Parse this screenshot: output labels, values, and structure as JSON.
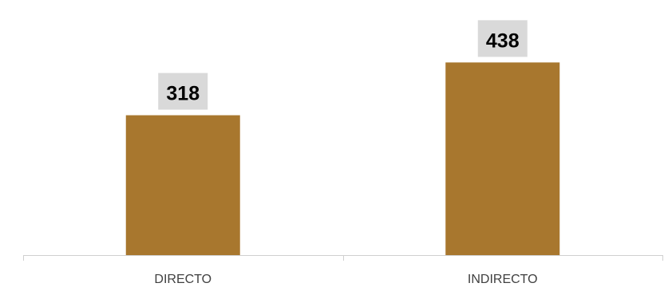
{
  "chart_data": {
    "type": "bar",
    "categories": [
      "DIRECTO",
      "INDIRECTO"
    ],
    "values": [
      318,
      438
    ],
    "title": "",
    "xlabel": "",
    "ylabel": "",
    "ylim": [
      0,
      580
    ],
    "grid": false,
    "legend": "none",
    "data_labels": true,
    "colors": {
      "bar": "#A8772E",
      "data_label_bg": "#D9D9D9",
      "axis": "#D0D0D0",
      "tick_text": "#404040",
      "label_text": "#000000"
    }
  }
}
